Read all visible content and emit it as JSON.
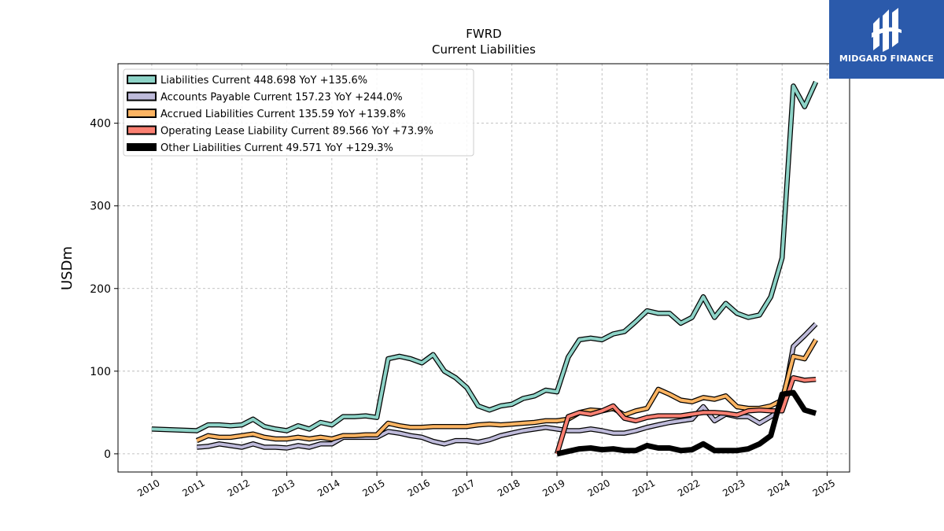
{
  "logo": {
    "text": "MIDGARD FINANCE",
    "color": "#2b5aab"
  },
  "chart_data": {
    "type": "line",
    "title": "FWRD",
    "subtitle": "Current  Liabilities",
    "xlabel": "",
    "ylabel": "USDm",
    "xlim": [
      2009.25,
      2025.5
    ],
    "ylim": [
      -22,
      472
    ],
    "x_ticks": [
      2010,
      2011,
      2012,
      2013,
      2014,
      2015,
      2016,
      2017,
      2018,
      2019,
      2020,
      2021,
      2022,
      2023,
      2024,
      2025
    ],
    "x_tick_labels": [
      "2010",
      "2011",
      "2012",
      "2013",
      "2014",
      "2015",
      "2016",
      "2017",
      "2018",
      "2019",
      "2020",
      "2021",
      "2022",
      "2023",
      "2024",
      "2025"
    ],
    "y_ticks": [
      0,
      100,
      200,
      300,
      400
    ],
    "y_tick_labels": [
      "0",
      "100",
      "200",
      "300",
      "400"
    ],
    "grid": true,
    "legend_position": "top-left",
    "series": [
      {
        "name": "Liabilities Current  448.698 YoY +135.6%",
        "color": "#8dd3c7",
        "width": 4,
        "x": [
          2010.0,
          2011.0,
          2011.25,
          2011.5,
          2011.75,
          2012.0,
          2012.25,
          2012.5,
          2012.75,
          2013.0,
          2013.25,
          2013.5,
          2013.75,
          2014.0,
          2014.25,
          2014.5,
          2014.75,
          2015.0,
          2015.25,
          2015.5,
          2015.75,
          2016.0,
          2016.25,
          2016.5,
          2016.75,
          2017.0,
          2017.25,
          2017.5,
          2017.75,
          2018.0,
          2018.25,
          2018.5,
          2018.75,
          2019.0,
          2019.25,
          2019.5,
          2019.75,
          2020.0,
          2020.25,
          2020.5,
          2020.75,
          2021.0,
          2021.25,
          2021.5,
          2021.75,
          2022.0,
          2022.25,
          2022.5,
          2022.75,
          2023.0,
          2023.25,
          2023.5,
          2023.75,
          2024.0,
          2024.25,
          2024.5,
          2024.75
        ],
        "y": [
          30,
          28,
          35,
          35,
          34,
          35,
          42,
          33,
          30,
          28,
          34,
          30,
          38,
          35,
          45,
          45,
          46,
          44,
          115,
          118,
          115,
          110,
          120,
          100,
          92,
          80,
          58,
          53,
          58,
          60,
          67,
          70,
          77,
          75,
          117,
          138,
          140,
          138,
          145,
          148,
          160,
          173,
          170,
          170,
          158,
          165,
          190,
          165,
          182,
          170,
          165,
          168,
          190,
          237,
          445,
          420,
          450
        ]
      },
      {
        "name": "Accounts Payable Current  157.23 YoY +244.0%",
        "color": "#bebada",
        "width": 4,
        "x": [
          2011.0,
          2011.25,
          2011.5,
          2011.75,
          2012.0,
          2012.25,
          2012.5,
          2012.75,
          2013.0,
          2013.25,
          2013.5,
          2013.75,
          2014.0,
          2014.25,
          2014.5,
          2014.75,
          2015.0,
          2015.25,
          2015.5,
          2015.75,
          2016.0,
          2016.25,
          2016.5,
          2016.75,
          2017.0,
          2017.25,
          2017.5,
          2017.75,
          2018.0,
          2018.25,
          2018.5,
          2018.75,
          2019.0,
          2019.25,
          2019.5,
          2019.75,
          2020.0,
          2020.25,
          2020.5,
          2020.75,
          2021.0,
          2021.25,
          2021.5,
          2021.75,
          2022.0,
          2022.25,
          2022.5,
          2022.75,
          2023.0,
          2023.25,
          2023.5,
          2023.75,
          2024.0,
          2024.25,
          2024.5,
          2024.75
        ],
        "y": [
          8,
          9,
          12,
          10,
          8,
          12,
          8,
          8,
          7,
          10,
          8,
          12,
          12,
          20,
          20,
          20,
          20,
          27,
          25,
          22,
          20,
          15,
          12,
          16,
          16,
          14,
          17,
          22,
          25,
          28,
          30,
          32,
          30,
          28,
          28,
          30,
          28,
          25,
          25,
          28,
          32,
          35,
          38,
          40,
          42,
          57,
          40,
          48,
          45,
          45,
          37,
          45,
          55,
          130,
          143,
          157
        ]
      },
      {
        "name": "Accrued Liabilities Current  135.59 YoY +139.8%",
        "color": "#fdb462",
        "width": 4,
        "x": [
          2011.0,
          2011.25,
          2011.5,
          2011.75,
          2012.0,
          2012.25,
          2012.5,
          2012.75,
          2013.0,
          2013.25,
          2013.5,
          2013.75,
          2014.0,
          2014.25,
          2014.5,
          2014.75,
          2015.0,
          2015.25,
          2015.5,
          2015.75,
          2016.0,
          2016.25,
          2016.5,
          2016.75,
          2017.0,
          2017.25,
          2017.5,
          2017.75,
          2018.0,
          2018.25,
          2018.5,
          2018.75,
          2019.0,
          2019.25,
          2019.5,
          2019.75,
          2020.0,
          2020.25,
          2020.5,
          2020.75,
          2021.0,
          2021.25,
          2021.5,
          2021.75,
          2022.0,
          2022.25,
          2022.5,
          2022.75,
          2023.0,
          2023.25,
          2023.5,
          2023.75,
          2024.0,
          2024.25,
          2024.5,
          2024.75
        ],
        "y": [
          16,
          22,
          20,
          20,
          22,
          24,
          20,
          18,
          18,
          20,
          18,
          20,
          18,
          22,
          22,
          23,
          23,
          37,
          34,
          32,
          32,
          33,
          33,
          33,
          33,
          35,
          36,
          35,
          36,
          37,
          38,
          40,
          40,
          42,
          50,
          53,
          52,
          55,
          47,
          52,
          55,
          78,
          72,
          65,
          63,
          68,
          66,
          70,
          57,
          55,
          55,
          58,
          65,
          118,
          115,
          138
        ]
      },
      {
        "name": "Operating Lease Liability Current  89.566 YoY +73.9%",
        "color": "#fb8072",
        "width": 4,
        "x": [
          2019.0,
          2019.25,
          2019.5,
          2019.75,
          2020.0,
          2020.25,
          2020.5,
          2020.75,
          2021.0,
          2021.25,
          2021.5,
          2021.75,
          2022.0,
          2022.25,
          2022.5,
          2022.75,
          2023.0,
          2023.25,
          2023.5,
          2023.75,
          2024.0,
          2024.25,
          2024.5,
          2024.75
        ],
        "y": [
          0,
          45,
          50,
          48,
          52,
          58,
          43,
          40,
          44,
          46,
          46,
          46,
          48,
          50,
          50,
          49,
          47,
          52,
          53,
          52,
          52,
          92,
          89,
          90
        ]
      },
      {
        "name": "Other Liabilities Current  49.571 YoY +129.3%",
        "color": "#000000",
        "width": 7,
        "x": [
          2019.0,
          2019.25,
          2019.5,
          2019.75,
          2020.0,
          2020.25,
          2020.5,
          2020.75,
          2021.0,
          2021.25,
          2021.5,
          2021.75,
          2022.0,
          2022.25,
          2022.5,
          2022.75,
          2023.0,
          2023.25,
          2023.5,
          2023.75,
          2024.0,
          2024.25,
          2024.5,
          2024.75
        ],
        "y": [
          0,
          3,
          6,
          7,
          5,
          6,
          4,
          4,
          10,
          7,
          7,
          4,
          5,
          12,
          4,
          4,
          4,
          6,
          12,
          22,
          72,
          74,
          53,
          49
        ]
      }
    ]
  }
}
